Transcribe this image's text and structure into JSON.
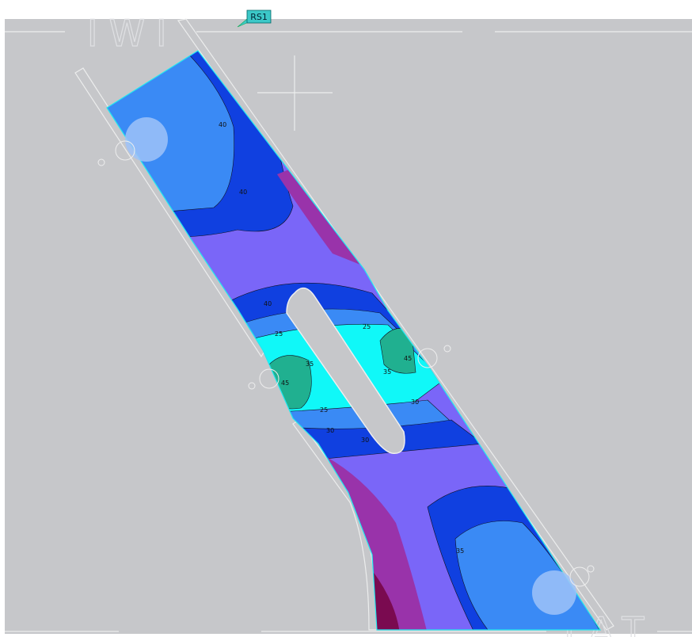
{
  "header": {
    "tag": "RS1"
  },
  "background_text": {
    "top": "IWI",
    "bottom": "TAT"
  },
  "contour_labels": [
    "40",
    "40",
    "40",
    "25",
    "25",
    "35",
    "35",
    "45",
    "45",
    "25",
    "30",
    "30",
    "30",
    "35"
  ]
}
